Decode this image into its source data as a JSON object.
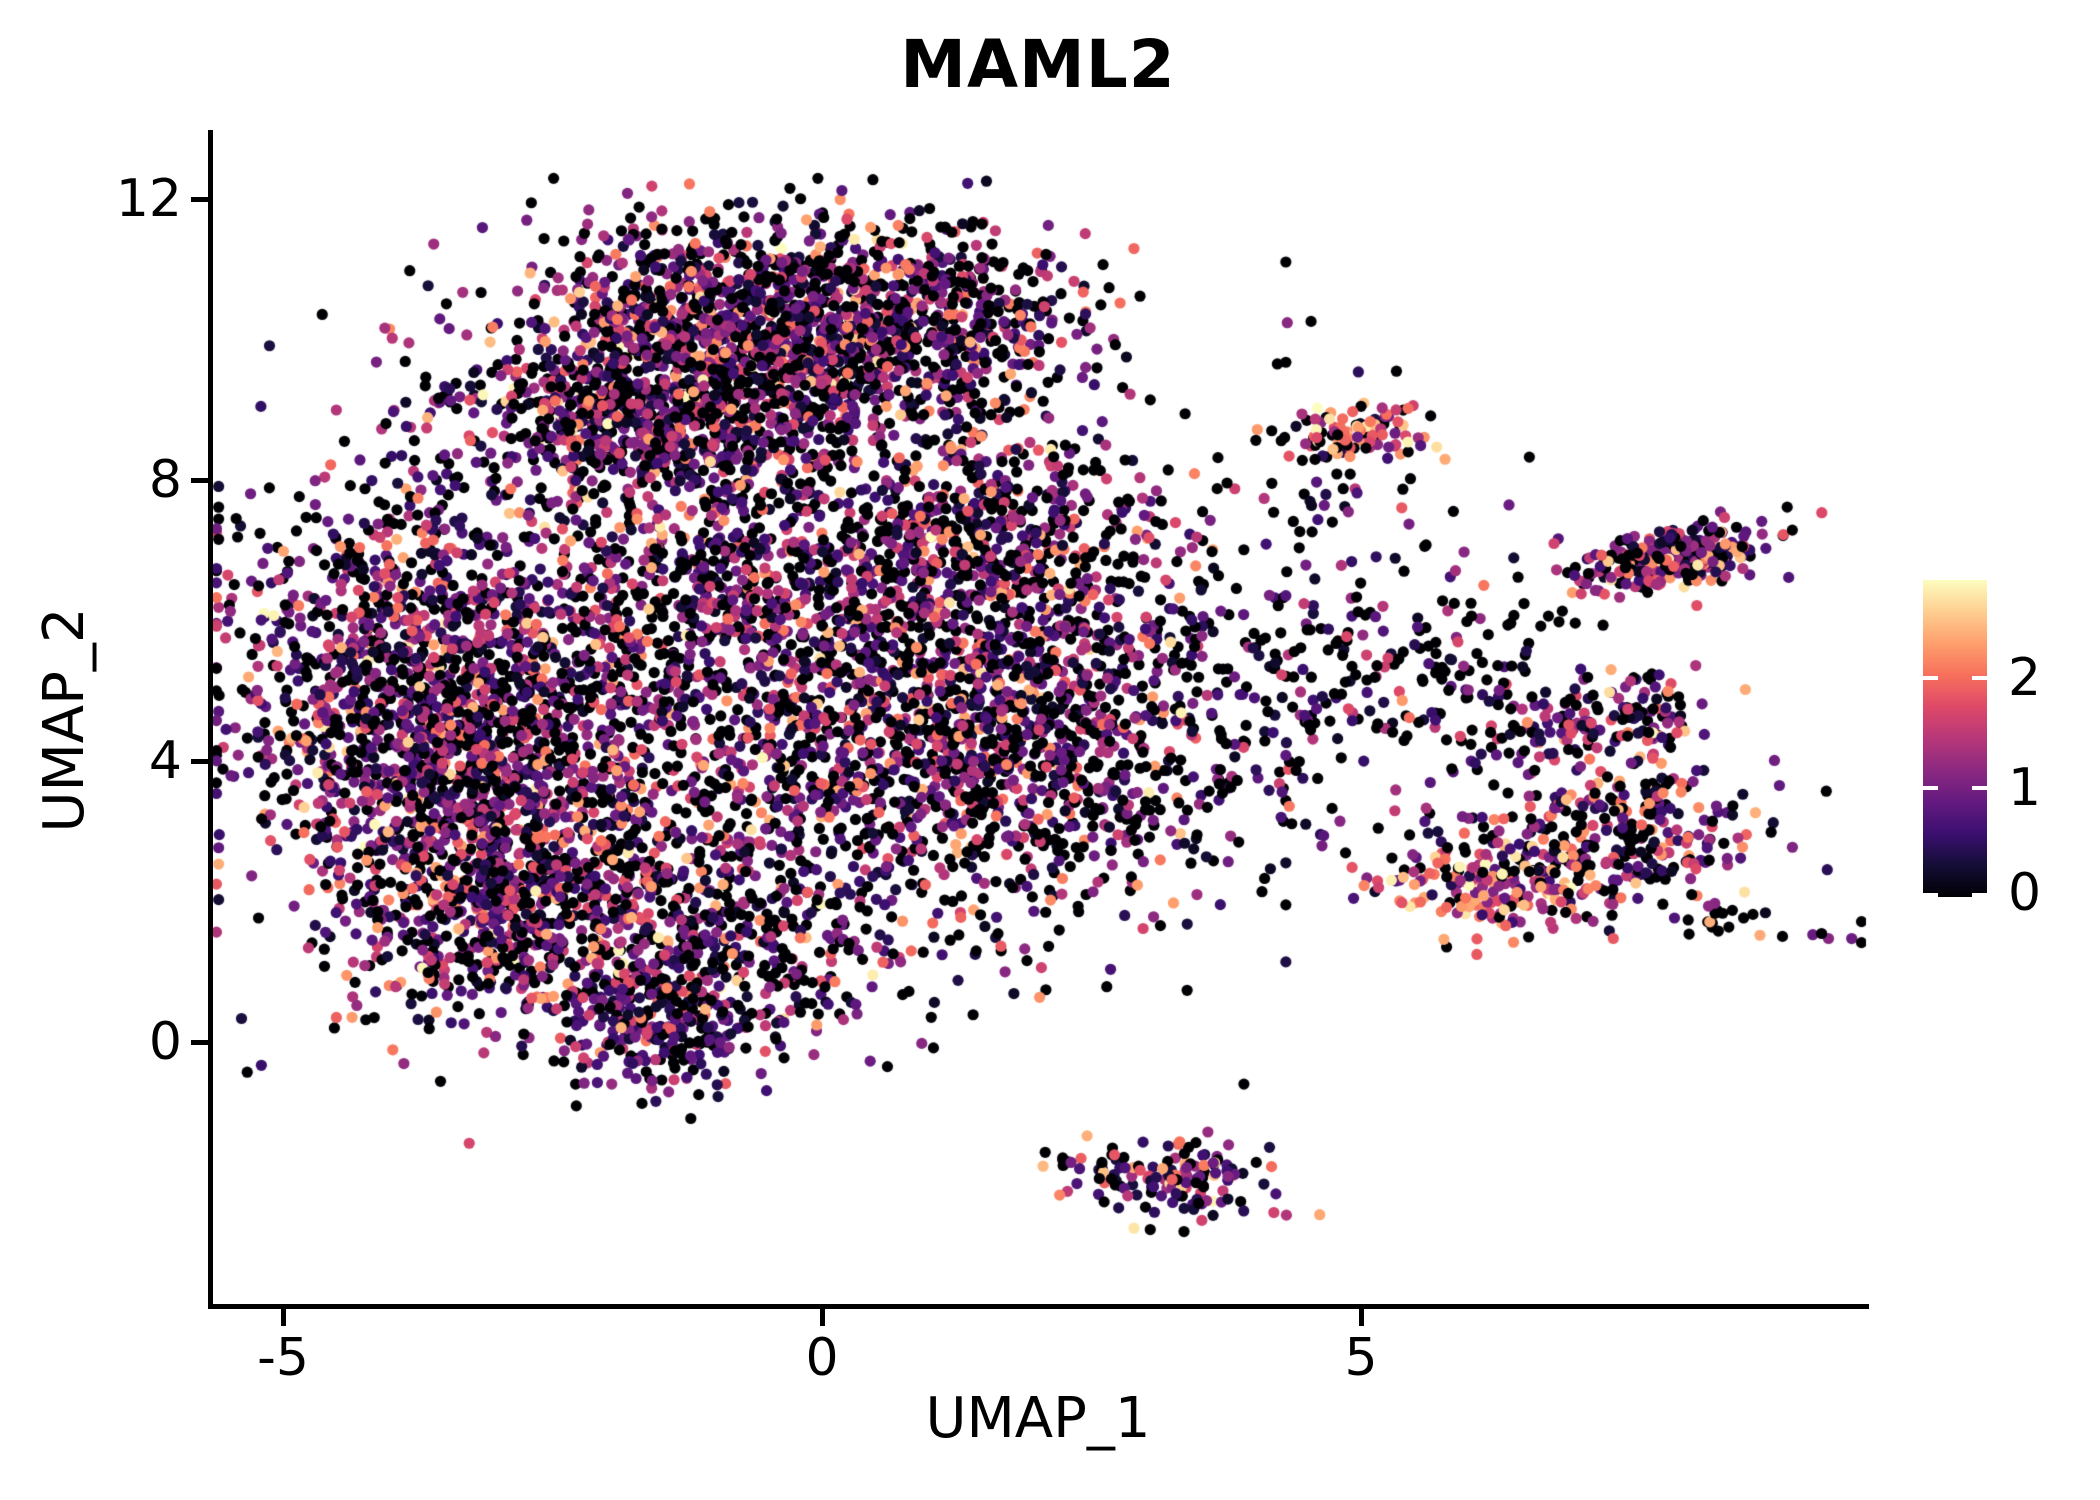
{
  "title": "MAML2",
  "x_axis": {
    "label": "UMAP_1",
    "ticks": [
      {
        "label": "-5",
        "value": -5
      },
      {
        "label": "0",
        "value": 0
      },
      {
        "label": "5",
        "value": 5
      }
    ]
  },
  "y_axis": {
    "label": "UMAP_2",
    "ticks": [
      {
        "label": "0",
        "value": 0
      },
      {
        "label": "4",
        "value": 4
      },
      {
        "label": "8",
        "value": 8
      },
      {
        "label": "12",
        "value": 12
      }
    ]
  },
  "colorbar": {
    "tick_labels": [
      {
        "label": "2",
        "value": 2
      },
      {
        "label": "1",
        "value": 1
      },
      {
        "label": "0",
        "value": 0
      }
    ],
    "vmax": 2.9
  },
  "chart_data": {
    "type": "scatter",
    "title": "MAML2",
    "xlabel": "UMAP_1",
    "ylabel": "UMAP_2",
    "xlim": [
      -5.68,
      9.7
    ],
    "ylim": [
      -3.76,
      12.96
    ],
    "x_ticks": [
      -5,
      0,
      5
    ],
    "y_ticks": [
      0,
      4,
      8,
      12
    ],
    "grid": false,
    "legend_position": "right",
    "vmax": 2.9,
    "point_radius_px": 5.6,
    "seed": 42,
    "colormap": {
      "name": "magma",
      "stops": [
        [
          0.0,
          "#000004"
        ],
        [
          0.1,
          "#140e36"
        ],
        [
          0.2,
          "#3b0f70"
        ],
        [
          0.3,
          "#641a80"
        ],
        [
          0.4,
          "#8c2981"
        ],
        [
          0.5,
          "#b73779"
        ],
        [
          0.6,
          "#de4968"
        ],
        [
          0.7,
          "#f7705c"
        ],
        [
          0.8,
          "#fe9f6d"
        ],
        [
          0.9,
          "#fece91"
        ],
        [
          1.0,
          "#fcfdbf"
        ]
      ]
    },
    "expression_bins": {
      "zero": [
        0,
        0
      ],
      "low": [
        0.15,
        0.85
      ],
      "mid": [
        0.85,
        1.7
      ],
      "high": [
        1.7,
        2.45
      ],
      "vhigh": [
        2.45,
        2.9
      ]
    },
    "profiles": {
      "main": {
        "zero": 0.37,
        "low": 0.26,
        "mid": 0.26,
        "high": 0.095,
        "vhigh": 0.015
      },
      "left": {
        "zero": 0.33,
        "low": 0.24,
        "mid": 0.28,
        "high": 0.13,
        "vhigh": 0.02
      },
      "dark": {
        "zero": 0.55,
        "low": 0.27,
        "mid": 0.13,
        "high": 0.05,
        "vhigh": 0.0
      },
      "bright": {
        "zero": 0.18,
        "low": 0.1,
        "mid": 0.27,
        "high": 0.32,
        "vhigh": 0.13
      },
      "right_b": {
        "zero": 0.28,
        "low": 0.24,
        "mid": 0.29,
        "high": 0.16,
        "vhigh": 0.03
      },
      "right_d": {
        "zero": 0.34,
        "low": 0.3,
        "mid": 0.22,
        "high": 0.12,
        "vhigh": 0.02
      },
      "orange": {
        "zero": 0.12,
        "low": 0.12,
        "mid": 0.22,
        "high": 0.38,
        "vhigh": 0.16
      },
      "bottom_knot": {
        "zero": 0.28,
        "low": 0.4,
        "mid": 0.26,
        "high": 0.055,
        "vhigh": 0.005
      },
      "bottom_sat": {
        "zero": 0.28,
        "low": 0.26,
        "mid": 0.24,
        "high": 0.18,
        "vhigh": 0.04
      }
    },
    "clusters": [
      {
        "name": "top-lobe-core",
        "x": -0.6,
        "y": 10.35,
        "sx": 1.15,
        "sy": 0.7,
        "n": 1150,
        "profile": "main"
      },
      {
        "name": "top-lobe-right",
        "x": 0.95,
        "y": 10.1,
        "sx": 0.75,
        "sy": 0.75,
        "n": 420,
        "profile": "main"
      },
      {
        "name": "top-band",
        "x": -1.45,
        "y": 8.9,
        "sx": 1.0,
        "sy": 0.65,
        "n": 900,
        "profile": "main"
      },
      {
        "name": "left-lobe",
        "x": -3.85,
        "y": 5.3,
        "sx": 0.85,
        "sy": 1.35,
        "n": 1050,
        "profile": "left"
      },
      {
        "name": "left-mid",
        "x": -3.1,
        "y": 3.2,
        "sx": 0.85,
        "sy": 1.1,
        "n": 800,
        "profile": "left"
      },
      {
        "name": "center-upper",
        "x": -0.55,
        "y": 6.4,
        "sx": 1.5,
        "sy": 1.05,
        "n": 1050,
        "profile": "main"
      },
      {
        "name": "center-lower",
        "x": -0.1,
        "y": 4.0,
        "sx": 1.6,
        "sy": 1.15,
        "n": 1000,
        "profile": "main"
      },
      {
        "name": "right-arm",
        "x": 2.1,
        "y": 4.4,
        "sx": 0.95,
        "sy": 1.25,
        "n": 750,
        "profile": "main"
      },
      {
        "name": "right-arm-upper",
        "x": 1.6,
        "y": 7.3,
        "sx": 0.85,
        "sy": 0.8,
        "n": 430,
        "profile": "main"
      },
      {
        "name": "bottom-bulge",
        "x": -1.4,
        "y": 1.35,
        "sx": 1.15,
        "sy": 0.75,
        "n": 620,
        "profile": "main"
      },
      {
        "name": "bottom-knot",
        "x": -1.45,
        "y": 0.1,
        "sx": 0.5,
        "sy": 0.4,
        "n": 170,
        "profile": "bottom_knot"
      },
      {
        "name": "left-bottom",
        "x": -3.0,
        "y": 1.8,
        "sx": 0.7,
        "sy": 0.7,
        "n": 280,
        "profile": "left"
      },
      {
        "name": "halo",
        "x": -0.8,
        "y": 5.5,
        "sx": 2.6,
        "sy": 2.6,
        "n": 240,
        "profile": "dark",
        "clip": [
          -5.6,
          4.3,
          -0.6,
          12.3
        ]
      },
      {
        "name": "bridge-sparse",
        "x": 4.3,
        "y": 5.2,
        "sx": 1.1,
        "sy": 1.5,
        "n": 190,
        "profile": "dark"
      },
      {
        "name": "bridge-right",
        "x": 5.8,
        "y": 5.0,
        "sx": 0.8,
        "sy": 1.0,
        "n": 140,
        "profile": "dark"
      },
      {
        "name": "satellite-top",
        "x": 5.0,
        "y": 8.72,
        "sx": 0.33,
        "sy": 0.2,
        "n": 95,
        "profile": "bright"
      },
      {
        "name": "satellite-top-trail",
        "x": 4.55,
        "y": 7.9,
        "sx": 0.3,
        "sy": 0.5,
        "n": 28,
        "profile": "dark"
      },
      {
        "name": "satellite-top-above",
        "x": 5.0,
        "y": 9.6,
        "sx": 0.5,
        "sy": 0.3,
        "n": 6,
        "profile": "dark"
      },
      {
        "name": "right-upper-elongated",
        "x": 7.9,
        "y": 6.9,
        "sx": 0.42,
        "sy": 0.22,
        "n": 290,
        "profile": "right_b",
        "rot": 20
      },
      {
        "name": "right-middle",
        "x": 7.3,
        "y": 4.6,
        "sx": 0.55,
        "sy": 0.35,
        "n": 150,
        "profile": "right_b"
      },
      {
        "name": "right-lower",
        "x": 7.4,
        "y": 2.9,
        "sx": 0.65,
        "sy": 0.55,
        "n": 280,
        "profile": "right_d"
      },
      {
        "name": "right-lower-orange",
        "x": 6.35,
        "y": 2.3,
        "sx": 0.55,
        "sy": 0.35,
        "n": 190,
        "profile": "orange"
      },
      {
        "name": "right-straggler-pair",
        "x": 8.35,
        "y": 1.75,
        "sx": 0.22,
        "sy": 0.15,
        "n": 14,
        "profile": "dark"
      },
      {
        "name": "far-right-dots",
        "x": 9.3,
        "y": 1.55,
        "sx": 0.4,
        "sy": 0.12,
        "n": 8,
        "profile": "dark"
      },
      {
        "name": "bottom-satellite",
        "x": 3.3,
        "y": -1.95,
        "sx": 0.42,
        "sy": 0.28,
        "n": 130,
        "profile": "bottom_sat"
      },
      {
        "name": "bottom-satellite-tail",
        "x": 2.6,
        "y": -1.78,
        "sx": 0.22,
        "sy": 0.13,
        "n": 20,
        "profile": "dark"
      }
    ]
  }
}
